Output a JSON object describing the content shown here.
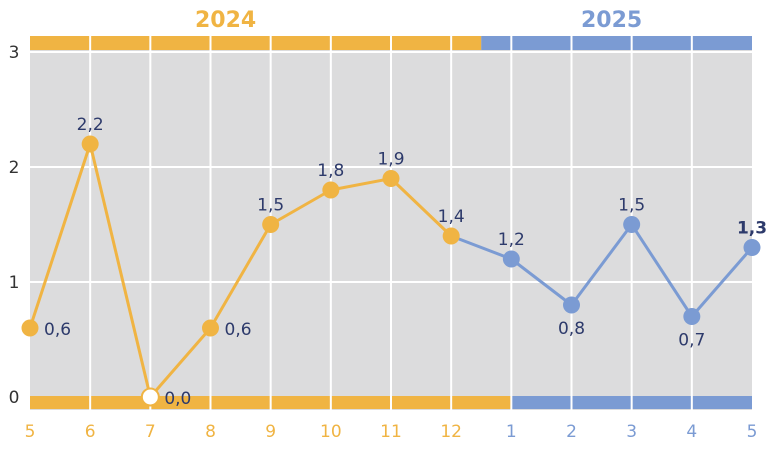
{
  "chart_data": {
    "type": "line",
    "years": [
      {
        "label": "2024",
        "color": "#f0b443"
      },
      {
        "label": "2025",
        "color": "#7b9bd3"
      }
    ],
    "categories": [
      "5",
      "6",
      "7",
      "8",
      "9",
      "10",
      "11",
      "12",
      "1",
      "2",
      "3",
      "4",
      "5"
    ],
    "category_year": [
      0,
      0,
      0,
      0,
      0,
      0,
      0,
      0,
      1,
      1,
      1,
      1,
      1
    ],
    "values": [
      0.6,
      2.2,
      0.0,
      0.6,
      1.5,
      1.8,
      1.9,
      1.4,
      1.2,
      0.8,
      1.5,
      0.7,
      1.3
    ],
    "value_labels": [
      "0,6",
      "2,2",
      "0,0",
      "0,6",
      "1,5",
      "1,8",
      "1,9",
      "1,4",
      "1,2",
      "0,8",
      "1,5",
      "0,7",
      "1,3"
    ],
    "label_position": [
      "right",
      "above",
      "right",
      "right",
      "above",
      "above",
      "above",
      "above",
      "above",
      "below",
      "above",
      "below",
      "above"
    ],
    "emphasized_index": 12,
    "y_ticks": [
      "0",
      "1",
      "2",
      "3"
    ],
    "ylim": [
      0,
      3
    ],
    "grid": true,
    "background": "#dcdcdd",
    "label_color": "#2d3a6b",
    "axis_label_color": "#333333"
  }
}
